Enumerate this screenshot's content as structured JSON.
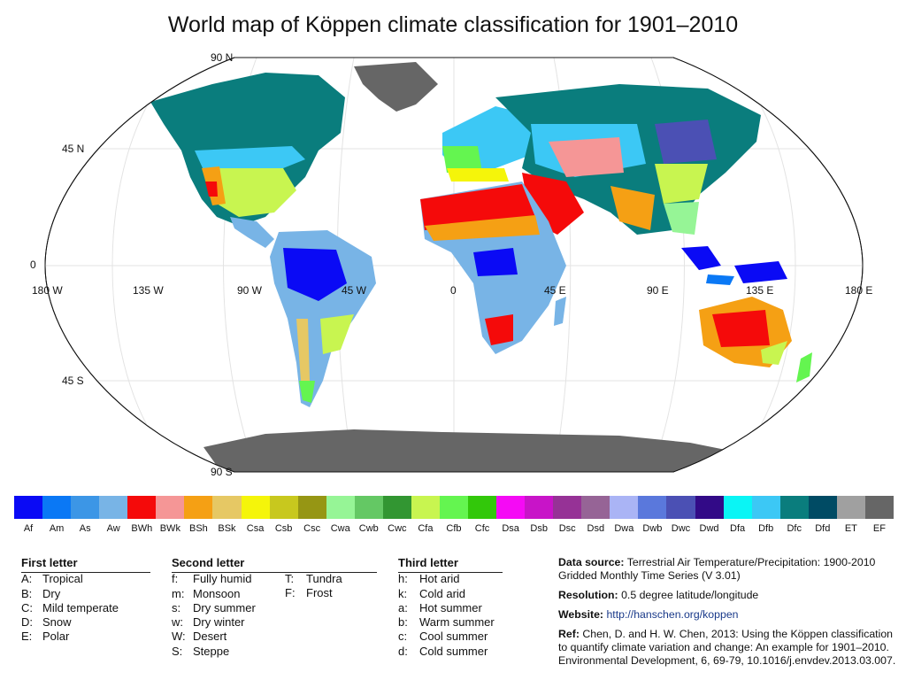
{
  "title": "World map of Köppen climate classification for 1901–2010",
  "map": {
    "lat_labels": {
      "n90": "90 N",
      "n45": "45 N",
      "eq": "0",
      "s45": "45 S",
      "s90": "90 S"
    },
    "lon_labels": {
      "w180": "180 W",
      "w135": "135 W",
      "w90": "90 W",
      "w45": "45 W",
      "zero": "0",
      "e45": "45 E",
      "e90": "90 E",
      "e135": "135 E",
      "e180": "180 E"
    },
    "projection_note": "Robinson-style oval projection with graticule every 45 degrees",
    "colors": {
      "ocean": "#ffffff",
      "land_polar": "#666666",
      "tundra": "#a0a0a0"
    }
  },
  "legend": [
    {
      "code": "Af",
      "color": "#0a0af5"
    },
    {
      "code": "Am",
      "color": "#0a78f5"
    },
    {
      "code": "As",
      "color": "#3c96e6"
    },
    {
      "code": "Aw",
      "color": "#78b4e6"
    },
    {
      "code": "BWh",
      "color": "#f50a0a"
    },
    {
      "code": "BWk",
      "color": "#f59696"
    },
    {
      "code": "BSh",
      "color": "#f5a014"
    },
    {
      "code": "BSk",
      "color": "#e6c864"
    },
    {
      "code": "Csa",
      "color": "#f5f50a"
    },
    {
      "code": "Csb",
      "color": "#c8c81e"
    },
    {
      "code": "Csc",
      "color": "#969614"
    },
    {
      "code": "Cwa",
      "color": "#96f596"
    },
    {
      "code": "Cwb",
      "color": "#64c864"
    },
    {
      "code": "Cwc",
      "color": "#329632"
    },
    {
      "code": "Cfa",
      "color": "#c8f550"
    },
    {
      "code": "Cfb",
      "color": "#64f550"
    },
    {
      "code": "Cfc",
      "color": "#32c80a"
    },
    {
      "code": "Dsa",
      "color": "#f50af5"
    },
    {
      "code": "Dsb",
      "color": "#c814c8"
    },
    {
      "code": "Dsc",
      "color": "#963296"
    },
    {
      "code": "Dsd",
      "color": "#966496"
    },
    {
      "code": "Dwa",
      "color": "#aab4f5"
    },
    {
      "code": "Dwb",
      "color": "#5a78dc"
    },
    {
      "code": "Dwc",
      "color": "#4b50b4"
    },
    {
      "code": "Dwd",
      "color": "#320a87"
    },
    {
      "code": "Dfa",
      "color": "#0af5f5"
    },
    {
      "code": "Dfb",
      "color": "#3cc8f5"
    },
    {
      "code": "Dfc",
      "color": "#0a7d7d"
    },
    {
      "code": "Dfd",
      "color": "#004b64"
    },
    {
      "code": "ET",
      "color": "#a0a0a0"
    },
    {
      "code": "EF",
      "color": "#666666"
    }
  ],
  "key": {
    "first": {
      "heading": "First letter",
      "items": [
        {
          "k": "A:",
          "v": "Tropical"
        },
        {
          "k": "B:",
          "v": "Dry"
        },
        {
          "k": "C:",
          "v": "Mild temperate"
        },
        {
          "k": "D:",
          "v": "Snow"
        },
        {
          "k": "E:",
          "v": "Polar"
        }
      ]
    },
    "second": {
      "heading": "Second letter",
      "items": [
        {
          "k": "f:",
          "v": "Fully humid"
        },
        {
          "k": "m:",
          "v": "Monsoon"
        },
        {
          "k": "s:",
          "v": "Dry summer"
        },
        {
          "k": "w:",
          "v": "Dry winter"
        },
        {
          "k": "W:",
          "v": "Desert"
        },
        {
          "k": "S:",
          "v": "Steppe"
        }
      ],
      "items2": [
        {
          "k": "T:",
          "v": "Tundra"
        },
        {
          "k": "F:",
          "v": "Frost"
        }
      ]
    },
    "third": {
      "heading": "Third letter",
      "items": [
        {
          "k": "h:",
          "v": "Hot arid"
        },
        {
          "k": "k:",
          "v": "Cold arid"
        },
        {
          "k": "a:",
          "v": "Hot summer"
        },
        {
          "k": "b:",
          "v": "Warm summer"
        },
        {
          "k": "c:",
          "v": "Cool summer"
        },
        {
          "k": "d:",
          "v": "Cold summer"
        }
      ]
    }
  },
  "info": {
    "source_label": "Data source:",
    "source_text": "Terrestrial Air Temperature/Precipitation: 1900-2010 Gridded Monthly Time Series (V 3.01)",
    "res_label": "Resolution:",
    "res_text": "0.5 degree latitude/longitude",
    "web_label": "Website:",
    "web_text": "http://hanschen.org/koppen",
    "ref_label": "Ref:",
    "ref_text": "Chen, D. and H. W. Chen, 2013: Using the Köppen classification to quantify climate variation and change: An example for 1901–2010. Environmental Development, 6, 69-79, 10.1016/j.envdev.2013.03.007."
  }
}
